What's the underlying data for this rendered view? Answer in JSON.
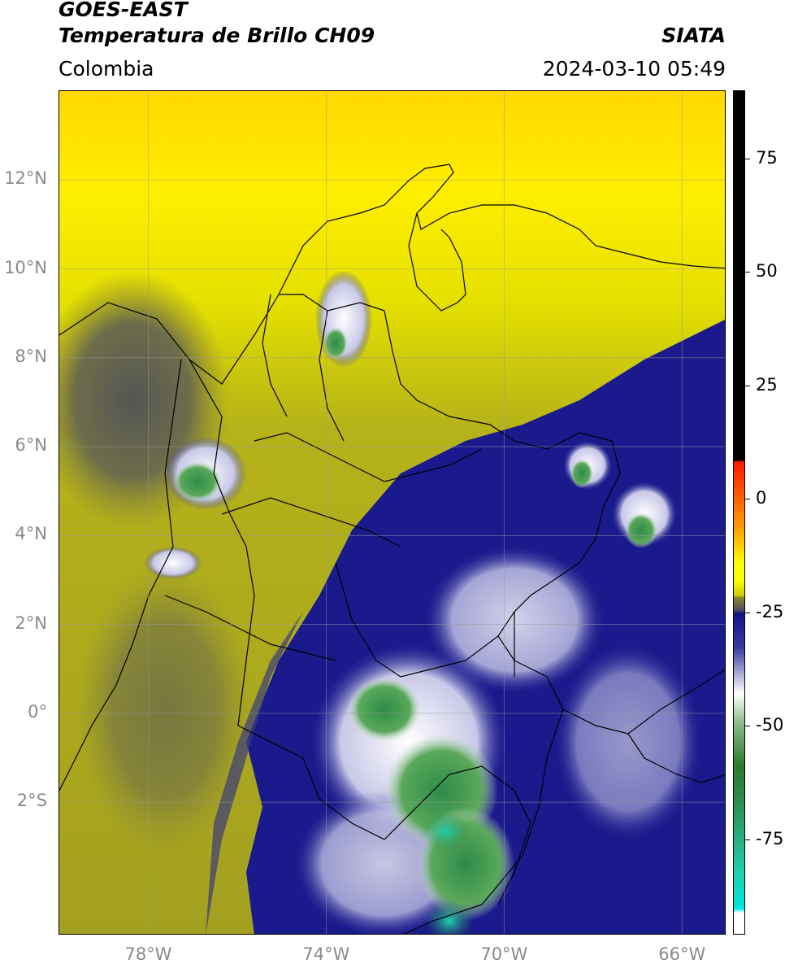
{
  "header": {
    "satellite": "GOES-EAST",
    "product": "Temperatura de Brillo CH09",
    "region": "Colombia",
    "institution": "SIATA",
    "datetime": "2024-03-10 05:49"
  },
  "map": {
    "lon_range": [
      -80,
      -65
    ],
    "lat_range": [
      -5,
      14
    ],
    "grid": true,
    "lat_ticks": [
      {
        "value": 12,
        "label": "12°N"
      },
      {
        "value": 10,
        "label": "10°N"
      },
      {
        "value": 8,
        "label": "8°N"
      },
      {
        "value": 6,
        "label": "6°N"
      },
      {
        "value": 4,
        "label": "4°N"
      },
      {
        "value": 2,
        "label": "2°N"
      },
      {
        "value": 0,
        "label": "0°"
      },
      {
        "value": -2,
        "label": "2°S"
      }
    ],
    "lon_ticks": [
      {
        "value": -78,
        "label": "78°W"
      },
      {
        "value": -74,
        "label": "74°W"
      },
      {
        "value": -70,
        "label": "70°W"
      },
      {
        "value": -66,
        "label": "66°W"
      }
    ]
  },
  "colorbar": {
    "range": [
      -96,
      90
    ],
    "ticks": [
      {
        "value": 75,
        "label": "75"
      },
      {
        "value": 50,
        "label": "50"
      },
      {
        "value": 25,
        "label": "25"
      },
      {
        "value": 0,
        "label": "0"
      },
      {
        "value": -25,
        "label": "-25"
      },
      {
        "value": -50,
        "label": "-50"
      },
      {
        "value": -75,
        "label": "-75"
      }
    ],
    "colors": {
      "black": "#000000",
      "red": "#ff1a00",
      "orange": "#ffa000",
      "yellow": "#ffff00",
      "olive": "#8a8a2a",
      "gray": "#555555",
      "navy": "#14148a",
      "white": "#ffffff",
      "green": "#2e8b2e",
      "cyan": "#00e5e5"
    }
  }
}
